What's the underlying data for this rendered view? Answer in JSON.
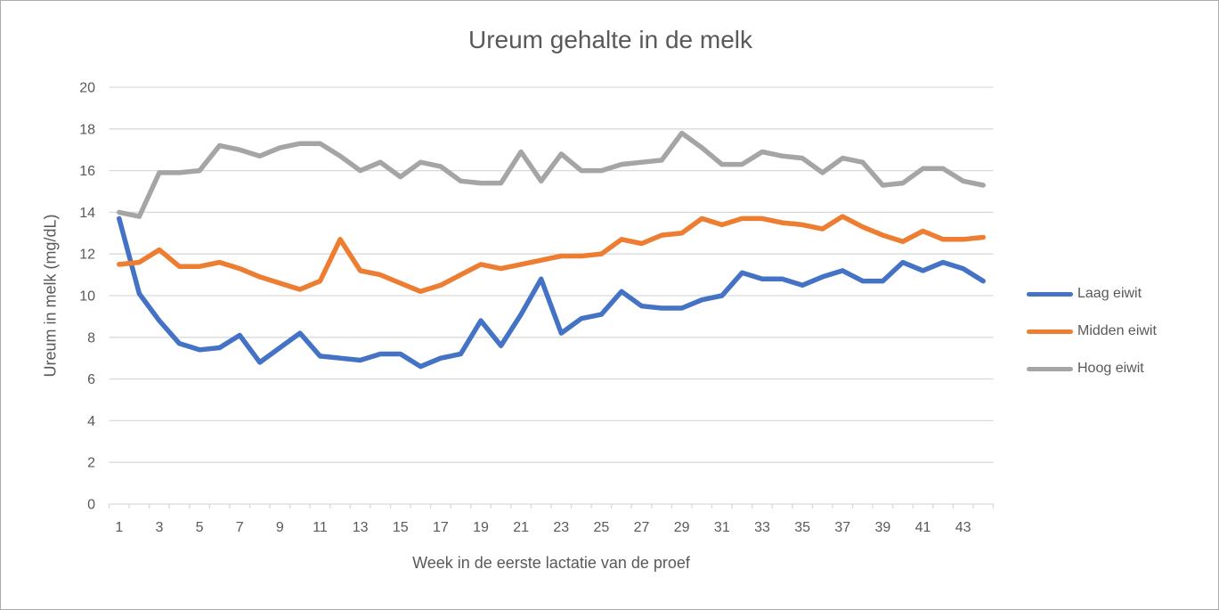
{
  "chart_data": {
    "type": "line",
    "title": "Ureum gehalte in de melk",
    "xlabel": "Week in de eerste lactatie van de proef",
    "ylabel": "Ureum in melk (mg/dL)",
    "x": [
      1,
      2,
      3,
      4,
      5,
      6,
      7,
      8,
      9,
      10,
      11,
      12,
      13,
      14,
      15,
      16,
      17,
      18,
      19,
      20,
      21,
      22,
      23,
      24,
      25,
      26,
      27,
      28,
      29,
      30,
      31,
      32,
      33,
      34,
      35,
      36,
      37,
      38,
      39,
      40,
      41,
      42,
      43,
      44
    ],
    "x_tick_labels": [
      1,
      3,
      5,
      7,
      9,
      11,
      13,
      15,
      17,
      19,
      21,
      23,
      25,
      27,
      29,
      31,
      33,
      35,
      37,
      39,
      41,
      43
    ],
    "ylim": [
      0,
      20
    ],
    "y_ticks": [
      0,
      2,
      4,
      6,
      8,
      10,
      12,
      14,
      16,
      18,
      20
    ],
    "grid": "horizontal",
    "legend_position": "right",
    "gridline_color": "#d9d9d9",
    "text_color": "#595959",
    "series": [
      {
        "name": "Laag eiwit",
        "color": "#4472c4",
        "values": [
          13.7,
          10.1,
          8.8,
          7.7,
          7.4,
          7.5,
          8.1,
          6.8,
          7.5,
          8.2,
          7.1,
          7.0,
          6.9,
          7.2,
          7.2,
          6.6,
          7.0,
          7.2,
          8.8,
          7.6,
          9.1,
          10.8,
          8.2,
          8.9,
          9.1,
          10.2,
          9.5,
          9.4,
          9.4,
          9.8,
          10.0,
          11.1,
          10.8,
          10.8,
          10.5,
          10.9,
          11.2,
          10.7,
          10.7,
          11.6,
          11.2,
          11.6,
          11.3,
          10.7
        ]
      },
      {
        "name": "Midden eiwit",
        "color": "#ed7d31",
        "values": [
          11.5,
          11.6,
          12.2,
          11.4,
          11.4,
          11.6,
          11.3,
          10.9,
          10.6,
          10.3,
          10.7,
          12.7,
          11.2,
          11.0,
          10.6,
          10.2,
          10.5,
          11.0,
          11.5,
          11.3,
          11.5,
          11.7,
          11.9,
          11.9,
          12.0,
          12.7,
          12.5,
          12.9,
          13.0,
          13.7,
          13.4,
          13.7,
          13.7,
          13.5,
          13.4,
          13.2,
          13.8,
          13.3,
          12.9,
          12.6,
          13.1,
          12.7,
          12.7,
          12.8
        ]
      },
      {
        "name": "Hoog eiwit",
        "color": "#a5a5a5",
        "values": [
          14.0,
          13.8,
          15.9,
          15.9,
          16.0,
          17.2,
          17.0,
          16.7,
          17.1,
          17.3,
          17.3,
          16.7,
          16.0,
          16.4,
          15.7,
          16.4,
          16.2,
          15.5,
          15.4,
          15.4,
          16.9,
          15.5,
          16.8,
          16.0,
          16.0,
          16.3,
          16.4,
          16.5,
          17.8,
          17.1,
          16.3,
          16.3,
          16.9,
          16.7,
          16.6,
          15.9,
          16.6,
          16.4,
          15.3,
          15.4,
          16.1,
          16.1,
          15.5,
          15.3
        ]
      }
    ]
  }
}
